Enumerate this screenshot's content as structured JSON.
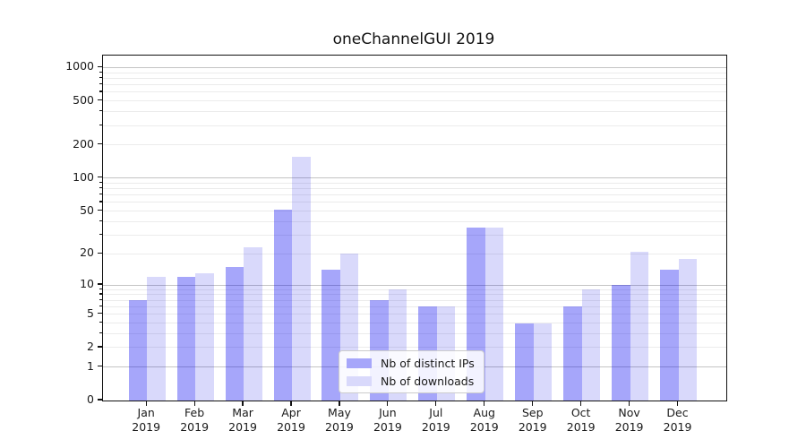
{
  "chart_data": {
    "type": "bar",
    "title": "oneChannelGUI 2019",
    "x_year": "2019",
    "categories": [
      "Jan",
      "Feb",
      "Mar",
      "Apr",
      "May",
      "Jun",
      "Jul",
      "Aug",
      "Sep",
      "Oct",
      "Nov",
      "Dec"
    ],
    "series": [
      {
        "name": "Nb of distinct IPs",
        "color": "#a6a6fa",
        "fill": "rgba(0,0,240,0.35)",
        "values": [
          7,
          12,
          15,
          52,
          14,
          7,
          6,
          35,
          4,
          6,
          10,
          14
        ]
      },
      {
        "name": "Nb of downloads",
        "color": "#d9d9fb",
        "fill": "rgba(0,0,230,0.15)",
        "values": [
          12,
          13,
          23,
          155,
          20,
          9,
          6,
          35,
          4,
          9,
          21,
          18
        ]
      }
    ],
    "yscale": "log1p",
    "ylim": [
      0,
      1285
    ],
    "yticks": [
      0,
      1,
      2,
      5,
      10,
      20,
      50,
      100,
      200,
      500,
      1000
    ],
    "grid": {
      "major": [
        1,
        10,
        100,
        1000
      ],
      "minor": [
        2,
        3,
        4,
        5,
        6,
        7,
        8,
        9,
        20,
        30,
        40,
        50,
        60,
        70,
        80,
        90,
        200,
        300,
        400,
        500,
        600,
        700,
        800,
        900
      ]
    },
    "legend_position": "lower center",
    "xlabel": "",
    "ylabel": ""
  },
  "colors": {
    "bar_distinct_ips": "#a6a6fa",
    "bar_downloads": "#d9d9fb",
    "grid_major": "#c4c4c4",
    "grid_minor": "#ebebeb",
    "spine": "#111111",
    "tick": "#111111",
    "text": "#1a1a1a",
    "legend_border": "#cccccc",
    "legend_bg": "rgba(255,255,255,0.85)"
  }
}
